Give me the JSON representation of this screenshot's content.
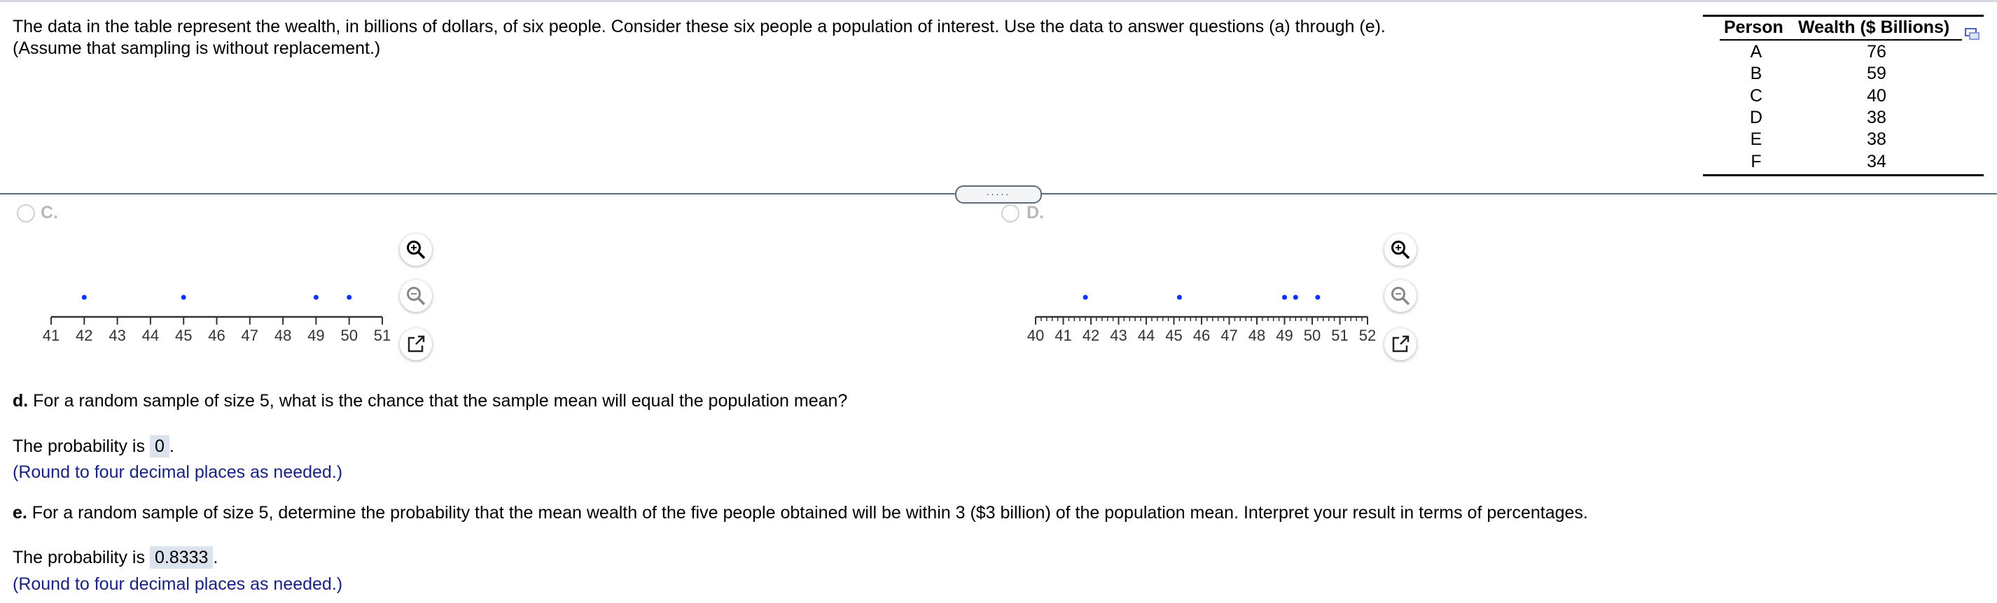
{
  "problem": {
    "line1": "The data in the table represent the wealth, in billions of dollars, of six people. Consider these six people a population of interest. Use the data to answer questions (a) through (e).",
    "line2": "(Assume that sampling is without replacement.)"
  },
  "table": {
    "headers": [
      "Person",
      "Wealth ($ Billions)"
    ],
    "rows": [
      {
        "person": "A",
        "wealth": "76"
      },
      {
        "person": "B",
        "wealth": "59"
      },
      {
        "person": "C",
        "wealth": "40"
      },
      {
        "person": "D",
        "wealth": "38"
      },
      {
        "person": "E",
        "wealth": "38"
      },
      {
        "person": "F",
        "wealth": "34"
      }
    ],
    "copy_icon": "copy-window-icon"
  },
  "divider_handle": ".....",
  "options": {
    "c": {
      "label": "C."
    },
    "d": {
      "label": "D."
    }
  },
  "chart_data": [
    {
      "type": "scatter",
      "option": "C",
      "xlim": [
        41,
        51
      ],
      "ticks": [
        "41",
        "42",
        "43",
        "44",
        "45",
        "46",
        "47",
        "48",
        "49",
        "50",
        "51"
      ],
      "x": [
        42,
        45,
        49,
        50
      ],
      "point_color": "#0033ff"
    },
    {
      "type": "scatter",
      "option": "D",
      "xlim": [
        40,
        52
      ],
      "ticks": [
        "40",
        "41",
        "42",
        "43",
        "44",
        "45",
        "46",
        "47",
        "48",
        "49",
        "50",
        "51",
        "52"
      ],
      "minor_ticks_per_unit": 5,
      "x": [
        41.8,
        45.2,
        49.0,
        49.4,
        50.2
      ],
      "point_color": "#0033ff"
    }
  ],
  "questions": {
    "d": {
      "letter": "d.",
      "text": " For a random sample of size 5, what is the chance that the sample mean will equal the population mean?",
      "prefix": "The probability is",
      "answer": "0",
      "suffix": ".",
      "hint": "(Round to four decimal places as needed.)"
    },
    "e": {
      "letter": "e.",
      "text": " For a random sample of size 5, determine the probability that the mean wealth of the five people obtained will be within 3 ($3 billion) of the population mean. Interpret your result in terms of percentages.",
      "prefix": "The probability is",
      "answer": "0.8333",
      "suffix": ".",
      "hint": "(Round to four decimal places as needed.)"
    }
  }
}
